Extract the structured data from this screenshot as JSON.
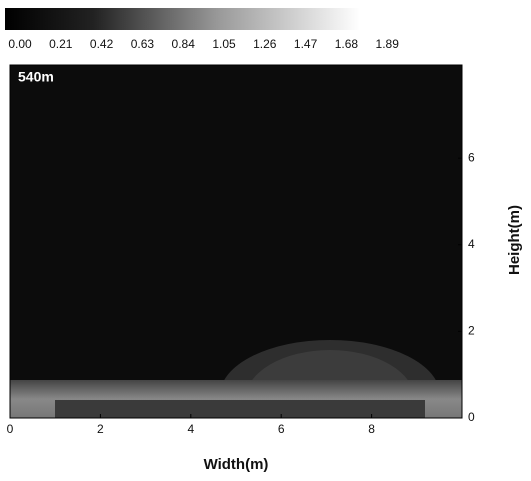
{
  "chart_data": {
    "type": "heatmap",
    "annotation": "540m",
    "x_label": "Width(m)",
    "y_label": "Height(m)",
    "xlim": [
      0,
      10
    ],
    "xticks": [
      0,
      2,
      4,
      6,
      8
    ],
    "ylim": [
      0,
      8.15
    ],
    "yticks": [
      0,
      2,
      4,
      6
    ],
    "colorbar": {
      "lim": [
        0,
        2.1
      ],
      "ticks": [
        {
          "value": 0,
          "label": "0.00"
        },
        {
          "value": 0.21,
          "label": "0.21"
        },
        {
          "value": 0.42,
          "label": "0.42"
        },
        {
          "value": 0.63,
          "label": "0.63"
        },
        {
          "value": 0.84,
          "label": "0.84"
        },
        {
          "value": 1.05,
          "label": "1.05"
        },
        {
          "value": 1.26,
          "label": "1.26"
        },
        {
          "value": 1.47,
          "label": "1.47"
        },
        {
          "value": 1.68,
          "label": "1.68"
        },
        {
          "value": 1.89,
          "label": "1.89"
        }
      ]
    }
  }
}
